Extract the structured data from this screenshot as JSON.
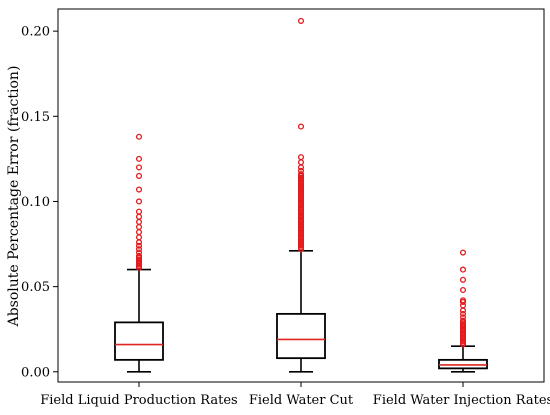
{
  "chart_data": {
    "type": "box",
    "title": "",
    "xlabel": "",
    "ylabel": "Absolute Percentage Error (fraction)",
    "ylim": [
      -0.006,
      0.213
    ],
    "yticks": [
      0.0,
      0.05,
      0.1,
      0.15,
      0.2
    ],
    "ytick_labels": [
      "0.00",
      "0.05",
      "0.10",
      "0.15",
      "0.20"
    ],
    "grid": false,
    "colors": {
      "box": "#000000",
      "median": "#e0261f",
      "outlier": "#e41a1c"
    },
    "categories": [
      "Field Liquid Production Rates",
      "Field Water Cut",
      "Field Water Injection Rates"
    ],
    "boxes": [
      {
        "name": "Field Liquid Production Rates",
        "whisker_low": 0.0,
        "q1": 0.007,
        "median": 0.016,
        "q3": 0.029,
        "whisker_high": 0.06,
        "outliers": [
          0.061,
          0.062,
          0.063,
          0.064,
          0.065,
          0.066,
          0.067,
          0.068,
          0.07,
          0.072,
          0.074,
          0.076,
          0.079,
          0.082,
          0.085,
          0.088,
          0.091,
          0.094,
          0.1,
          0.107,
          0.115,
          0.12,
          0.125,
          0.138
        ]
      },
      {
        "name": "Field Water Cut",
        "whisker_low": 0.0,
        "q1": 0.008,
        "median": 0.019,
        "q3": 0.034,
        "whisker_high": 0.071,
        "outliers": [
          0.072,
          0.073,
          0.074,
          0.075,
          0.076,
          0.077,
          0.078,
          0.079,
          0.08,
          0.081,
          0.082,
          0.083,
          0.084,
          0.085,
          0.086,
          0.087,
          0.088,
          0.089,
          0.09,
          0.091,
          0.092,
          0.093,
          0.094,
          0.095,
          0.096,
          0.097,
          0.098,
          0.099,
          0.1,
          0.101,
          0.102,
          0.103,
          0.104,
          0.105,
          0.106,
          0.107,
          0.108,
          0.109,
          0.11,
          0.111,
          0.112,
          0.113,
          0.114,
          0.115,
          0.116,
          0.118,
          0.12,
          0.123,
          0.126,
          0.144,
          0.206
        ]
      },
      {
        "name": "Field Water Injection Rates",
        "whisker_low": 0.0,
        "q1": 0.002,
        "median": 0.004,
        "q3": 0.007,
        "whisker_high": 0.015,
        "outliers": [
          0.016,
          0.017,
          0.018,
          0.019,
          0.02,
          0.021,
          0.022,
          0.023,
          0.024,
          0.025,
          0.026,
          0.027,
          0.028,
          0.029,
          0.03,
          0.032,
          0.034,
          0.036,
          0.039,
          0.041,
          0.042,
          0.048,
          0.054,
          0.06,
          0.07
        ]
      }
    ]
  }
}
